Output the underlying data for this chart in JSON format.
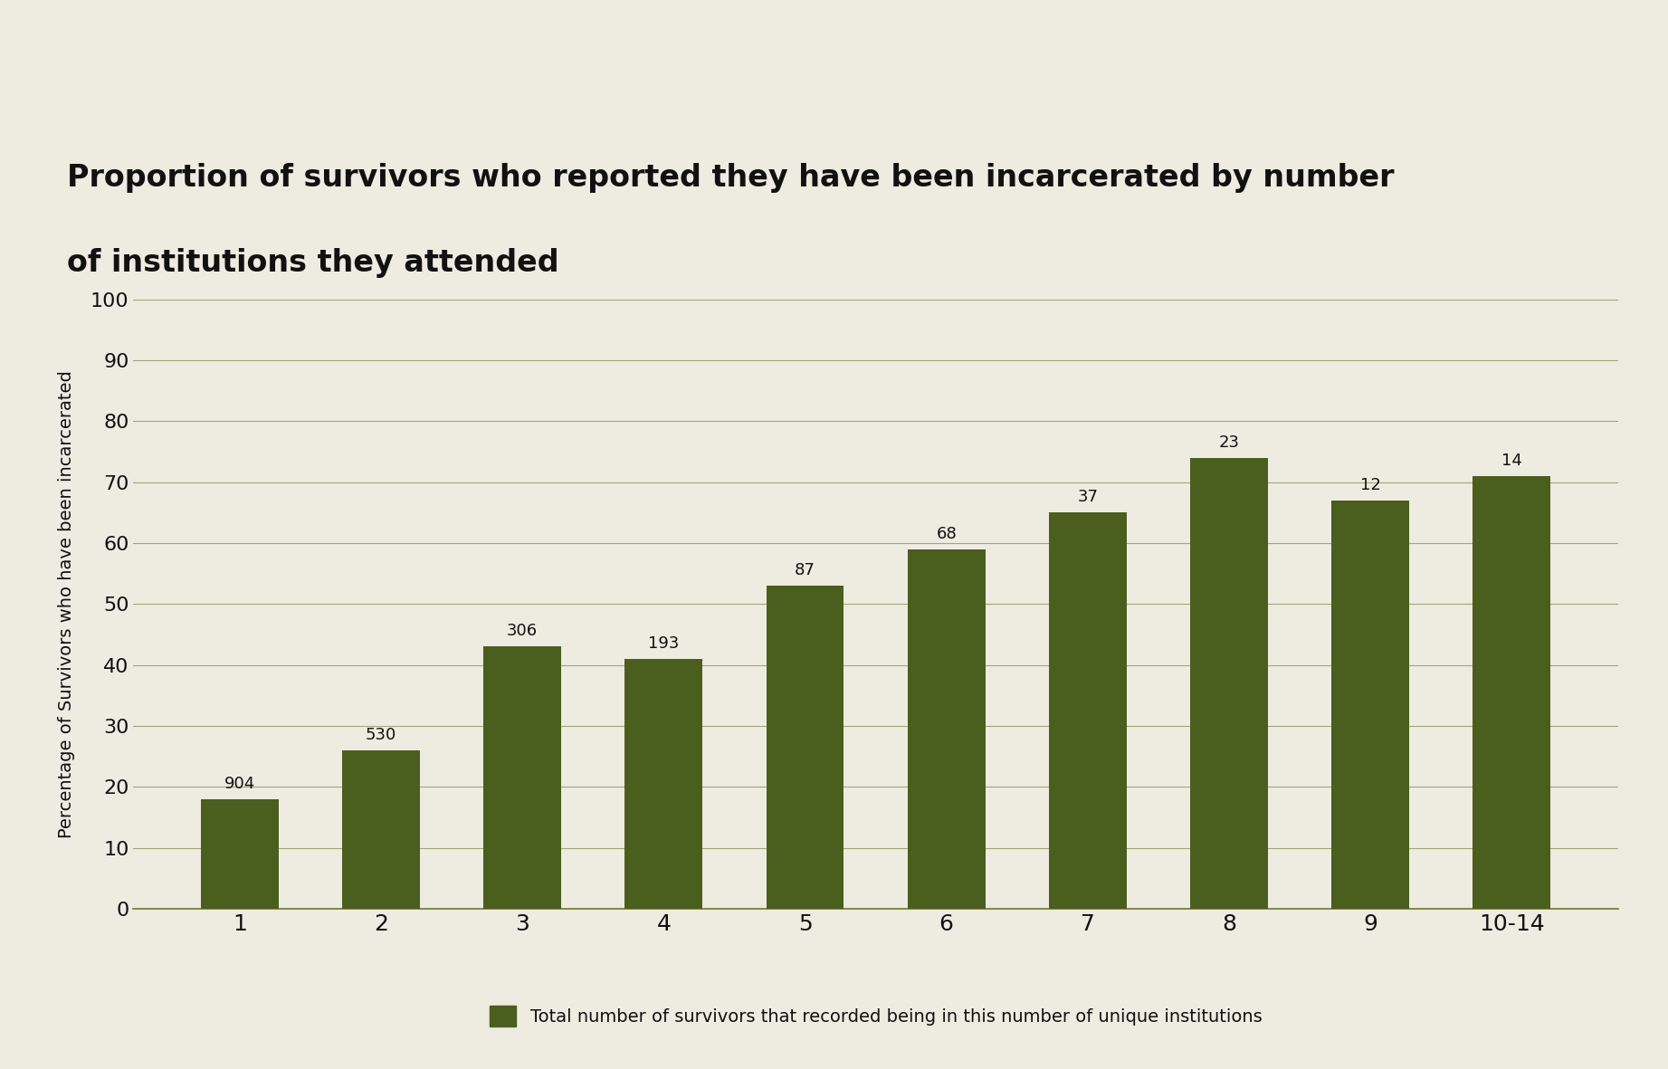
{
  "categories": [
    "1",
    "2",
    "3",
    "4",
    "5",
    "6",
    "7",
    "8",
    "9",
    "10-14"
  ],
  "values": [
    18,
    26,
    43,
    41,
    53,
    59,
    65,
    74,
    67,
    71
  ],
  "counts": [
    904,
    530,
    306,
    193,
    87,
    68,
    37,
    23,
    12,
    14
  ],
  "bar_color": "#4a5e1e",
  "background_color": "#eeebe0",
  "title_line1": "Proportion of survivors who reported they have been incarcerated by number",
  "title_line2": "of institutions they attended",
  "ylabel": "Percentage of Survivors who have been incarcerated",
  "ylim": [
    0,
    100
  ],
  "yticks": [
    0,
    10,
    20,
    30,
    40,
    50,
    60,
    70,
    80,
    90,
    100
  ],
  "legend_label": "Total number of survivors that recorded being in this number of unique institutions",
  "title_fontsize": 24,
  "axis_fontsize": 14,
  "tick_fontsize": 16,
  "count_fontsize": 13,
  "grid_color": "#6b7a30",
  "title_color": "#111111",
  "text_color": "#111111"
}
